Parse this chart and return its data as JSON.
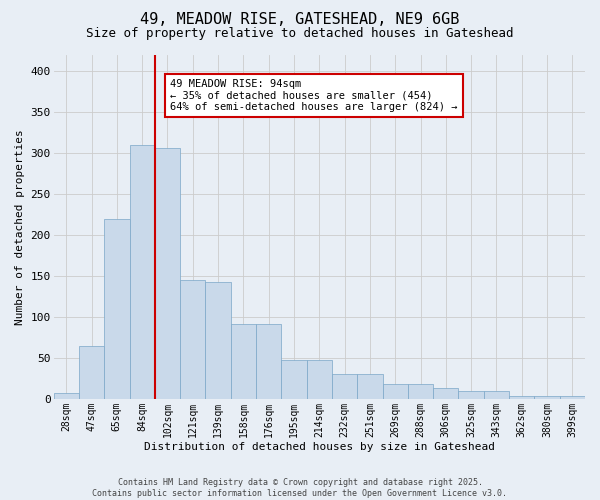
{
  "title_line1": "49, MEADOW RISE, GATESHEAD, NE9 6GB",
  "title_line2": "Size of property relative to detached houses in Gateshead",
  "xlabel": "Distribution of detached houses by size in Gateshead",
  "ylabel": "Number of detached properties",
  "categories": [
    "28sqm",
    "47sqm",
    "65sqm",
    "84sqm",
    "102sqm",
    "121sqm",
    "139sqm",
    "158sqm",
    "176sqm",
    "195sqm",
    "214sqm",
    "232sqm",
    "251sqm",
    "269sqm",
    "288sqm",
    "306sqm",
    "325sqm",
    "343sqm",
    "362sqm",
    "380sqm",
    "399sqm"
  ],
  "bar_values": [
    7,
    65,
    220,
    310,
    307,
    145,
    143,
    92,
    92,
    48,
    48,
    30,
    30,
    18,
    18,
    13,
    10,
    10,
    4,
    4,
    4
  ],
  "bar_color": "#c9d9ea",
  "bar_edge_color": "#7aa6c8",
  "vline_x": 3.5,
  "vline_color": "#cc0000",
  "annotation_text": "49 MEADOW RISE: 94sqm\n← 35% of detached houses are smaller (454)\n64% of semi-detached houses are larger (824) →",
  "annotation_box_color": "#ffffff",
  "annotation_box_edge": "#cc0000",
  "ylim": [
    0,
    420
  ],
  "yticks": [
    0,
    50,
    100,
    150,
    200,
    250,
    300,
    350,
    400
  ],
  "grid_color": "#cccccc",
  "bg_color": "#e8eef5",
  "footer1": "Contains HM Land Registry data © Crown copyright and database right 2025.",
  "footer2": "Contains public sector information licensed under the Open Government Licence v3.0."
}
